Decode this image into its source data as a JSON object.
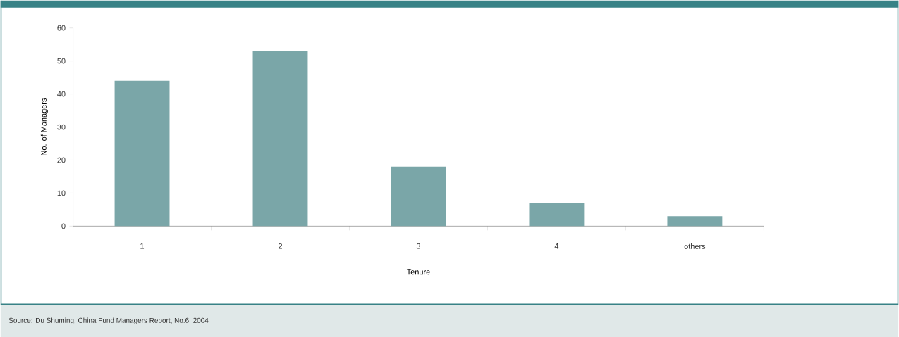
{
  "chart_data": {
    "type": "bar",
    "categories": [
      "1",
      "2",
      "3",
      "4",
      "others"
    ],
    "values": [
      44,
      53,
      18,
      7,
      3
    ],
    "color": "#7aa6a8",
    "xlabel": "Tenure",
    "ylabel": "No. of Managers",
    "ylim": [
      0,
      60
    ],
    "yticks": [
      0,
      10,
      20,
      30,
      40,
      50,
      60
    ],
    "grid": false,
    "annotations": [
      "Source: Du Shuming, China Fund Managers Report, No.6, 2004"
    ]
  }
}
